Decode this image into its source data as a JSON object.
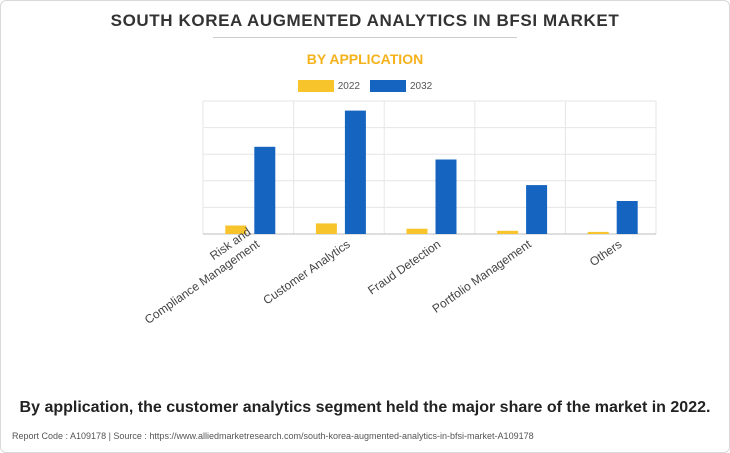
{
  "header": {
    "title": "SOUTH KOREA AUGMENTED ANALYTICS IN BFSI MARKET",
    "subtitle": "BY APPLICATION"
  },
  "colors": {
    "series_2022": "#f7c52b",
    "series_2032": "#1565c0",
    "subtitle": "#f5b21b"
  },
  "chart_data": {
    "type": "bar",
    "categories": [
      [
        "Risk and",
        "Compliance Management"
      ],
      [
        "Customer Analytics"
      ],
      [
        "Fraud Detection"
      ],
      [
        "Portfolio Management"
      ],
      [
        "Others"
      ]
    ],
    "series": [
      {
        "name": "2022",
        "values": [
          8,
          10,
          5,
          3,
          2
        ]
      },
      {
        "name": "2032",
        "values": [
          82,
          116,
          70,
          46,
          31
        ]
      }
    ],
    "ylim": [
      0,
      125
    ],
    "grid": true,
    "legend_position": "top-center",
    "y_tick_labels_shown": false
  },
  "caption": "By application, the customer analytics segment held the major share of the market in 2022.",
  "footer": "Report Code : A109178  |  Source : https://www.alliedmarketresearch.com/south-korea-augmented-analytics-in-bfsi-market-A109178"
}
